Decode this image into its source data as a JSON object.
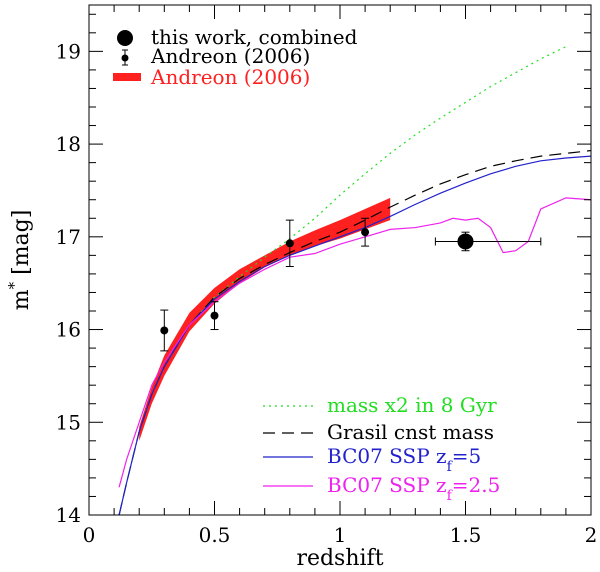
{
  "chart_data": {
    "type": "line",
    "title": "",
    "xlabel": "redshift",
    "ylabel": "m* [mag]",
    "xlim": [
      0,
      2
    ],
    "ylim": [
      14,
      19.5
    ],
    "y_inverted": false,
    "xticks": [
      0,
      0.5,
      1,
      1.5,
      2
    ],
    "xtick_labels": [
      "0",
      "0.5",
      "1",
      "1.5",
      "2"
    ],
    "yticks": [
      14,
      15,
      16,
      17,
      18,
      19
    ],
    "ytick_labels": [
      "14",
      "15",
      "16",
      "17",
      "18",
      "19"
    ],
    "grid": false,
    "legend_top": [
      {
        "label": "this work, combined",
        "marker": "large-circle",
        "color": "#000000"
      },
      {
        "label": "Andreon (2006)",
        "marker": "small-circle-errorbar",
        "color": "#000000"
      },
      {
        "label": "Andreon (2006)",
        "marker": "red-band",
        "color": "#ff2020"
      }
    ],
    "legend_bottom": [
      {
        "label": "mass x2 in 8 Gyr",
        "style": "dotted",
        "color": "#22dd22"
      },
      {
        "label": "Grasil cnst mass",
        "style": "dashed",
        "color": "#000000"
      },
      {
        "label": "BC07 SSP",
        "sub_prefix": "z",
        "sub": "f",
        "sub_suffix": "=5",
        "style": "solid",
        "color": "#2222cc"
      },
      {
        "label": "BC07 SSP",
        "sub_prefix": "z",
        "sub": "f",
        "sub_suffix": "=2.5",
        "style": "solid",
        "color": "#ee22ee"
      }
    ],
    "series": [
      {
        "name": "mass x2 in 8 Gyr",
        "style": "dotted",
        "color": "#22dd22",
        "x": [
          0.12,
          0.15,
          0.2,
          0.25,
          0.3,
          0.4,
          0.5,
          0.6,
          0.7,
          0.8,
          0.9,
          1.0,
          1.1,
          1.2,
          1.3,
          1.4,
          1.5,
          1.6,
          1.7,
          1.8,
          1.9
        ],
        "y": [
          14.0,
          14.35,
          14.9,
          15.3,
          15.6,
          16.05,
          16.35,
          16.57,
          16.78,
          16.98,
          17.2,
          17.45,
          17.68,
          17.9,
          18.1,
          18.28,
          18.45,
          18.62,
          18.77,
          18.92,
          19.05
        ]
      },
      {
        "name": "Grasil cnst mass",
        "style": "dashed",
        "color": "#000000",
        "x": [
          0.12,
          0.15,
          0.2,
          0.25,
          0.3,
          0.4,
          0.5,
          0.6,
          0.7,
          0.8,
          0.9,
          1.0,
          1.1,
          1.2,
          1.3,
          1.4,
          1.5,
          1.6,
          1.7,
          1.8,
          1.9,
          2.0
        ],
        "y": [
          14.0,
          14.35,
          14.9,
          15.3,
          15.6,
          16.05,
          16.35,
          16.55,
          16.7,
          16.83,
          16.95,
          17.05,
          17.18,
          17.32,
          17.45,
          17.57,
          17.67,
          17.76,
          17.82,
          17.87,
          17.9,
          17.93
        ]
      },
      {
        "name": "BC07 SSP zf=5",
        "style": "solid",
        "color": "#2222cc",
        "x": [
          0.12,
          0.15,
          0.2,
          0.25,
          0.3,
          0.4,
          0.5,
          0.6,
          0.7,
          0.8,
          0.9,
          1.0,
          1.1,
          1.2,
          1.3,
          1.4,
          1.5,
          1.6,
          1.7,
          1.8,
          1.9,
          2.0
        ],
        "y": [
          14.0,
          14.35,
          14.9,
          15.3,
          15.6,
          16.05,
          16.33,
          16.52,
          16.68,
          16.8,
          16.9,
          17.0,
          17.1,
          17.22,
          17.35,
          17.47,
          17.58,
          17.68,
          17.76,
          17.82,
          17.85,
          17.87
        ]
      },
      {
        "name": "BC07 SSP zf=2.5",
        "style": "solid",
        "color": "#ee22ee",
        "x": [
          0.12,
          0.15,
          0.2,
          0.25,
          0.3,
          0.4,
          0.5,
          0.6,
          0.7,
          0.8,
          0.9,
          1.0,
          1.1,
          1.2,
          1.3,
          1.4,
          1.45,
          1.5,
          1.55,
          1.6,
          1.65,
          1.7,
          1.75,
          1.8,
          1.9,
          2.0
        ],
        "y": [
          14.3,
          14.6,
          15.0,
          15.4,
          15.65,
          16.05,
          16.3,
          16.5,
          16.65,
          16.78,
          16.82,
          16.92,
          17.0,
          17.08,
          17.1,
          17.15,
          17.2,
          17.18,
          17.2,
          17.1,
          16.83,
          16.85,
          16.95,
          17.3,
          17.42,
          17.4
        ]
      }
    ],
    "band": {
      "name": "Andreon (2006)",
      "color": "#ff2020",
      "x": [
        0.2,
        0.25,
        0.3,
        0.4,
        0.5,
        0.6,
        0.7,
        0.8,
        0.9,
        1.0,
        1.1,
        1.2
      ],
      "y_low": [
        14.8,
        15.2,
        15.5,
        15.98,
        16.28,
        16.5,
        16.67,
        16.8,
        16.9,
        16.98,
        17.08,
        17.18
      ],
      "y_high": [
        14.95,
        15.38,
        15.72,
        16.18,
        16.45,
        16.65,
        16.8,
        16.95,
        17.07,
        17.18,
        17.3,
        17.42
      ]
    },
    "points_andreon": {
      "name": "Andreon (2006)",
      "color": "#000000",
      "x": [
        0.3,
        0.5,
        0.8,
        1.1
      ],
      "y": [
        15.99,
        16.15,
        16.93,
        17.05
      ],
      "yerr_low": [
        0.22,
        0.15,
        0.25,
        0.15
      ],
      "yerr_high": [
        0.22,
        0.15,
        0.25,
        0.15
      ]
    },
    "point_combined": {
      "name": "this work, combined",
      "color": "#000000",
      "x": 1.5,
      "y": 16.95,
      "xerr_low": 0.12,
      "xerr_high": 0.3,
      "yerr_low": 0.1,
      "yerr_high": 0.1
    }
  }
}
